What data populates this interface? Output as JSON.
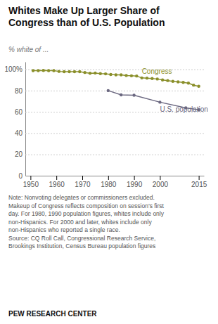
{
  "chart_data": {
    "type": "line",
    "title": "Whites Make Up Larger Share of\nCongress than of U.S. Population",
    "ylabel": "% white of ...",
    "series": [
      {
        "name": "Congress",
        "color": "#8a8f2a",
        "x": [
          1951,
          1953,
          1955,
          1957,
          1959,
          1961,
          1963,
          1965,
          1967,
          1969,
          1971,
          1973,
          1975,
          1977,
          1979,
          1981,
          1983,
          1985,
          1987,
          1989,
          1991,
          1993,
          1995,
          1997,
          1999,
          2001,
          2003,
          2005,
          2007,
          2009,
          2011,
          2013,
          2015
        ],
        "values": [
          98.7,
          98.7,
          98.9,
          98.7,
          98.7,
          98.0,
          97.8,
          97.8,
          97.8,
          97.8,
          97.0,
          96.3,
          96.5,
          95.9,
          95.7,
          95.1,
          94.8,
          94.8,
          94.2,
          93.9,
          93.7,
          91.9,
          91.7,
          91.3,
          90.9,
          90.0,
          89.4,
          88.7,
          88.2,
          87.7,
          87.0,
          85.1,
          84.0
        ]
      },
      {
        "name": "U.S. population",
        "color": "#6b6880",
        "x": [
          1980,
          1985,
          1990,
          2000,
          2010,
          2015
        ],
        "values": [
          80.0,
          76.0,
          75.6,
          69.1,
          63.7,
          62.0
        ]
      }
    ],
    "marker": "circle",
    "xlim": [
      1948,
      2017
    ],
    "xticks": [
      1950,
      1960,
      1970,
      1980,
      1990,
      2000,
      2015
    ],
    "ylim": [
      0,
      107
    ],
    "yticks": [
      0,
      20,
      40,
      60,
      80,
      {
        "value": 100,
        "label": "100%"
      }
    ],
    "grid": true,
    "annotations": [
      "Note: Nonvoting delegates or commissioners excluded.\nMakeup of Congress reflects composition on session’s first\nday. For 1980, 1990 population figures, whites include only\nnon-Hispanics. For 2000 and later, whites include only\nnon-Hispanics who reported a single race.\nSource: CQ Roll Call, Congressional Research Service,\nBrookings Institution, Census Bureau population figures",
      "PEW RESEARCH CENTER"
    ]
  }
}
